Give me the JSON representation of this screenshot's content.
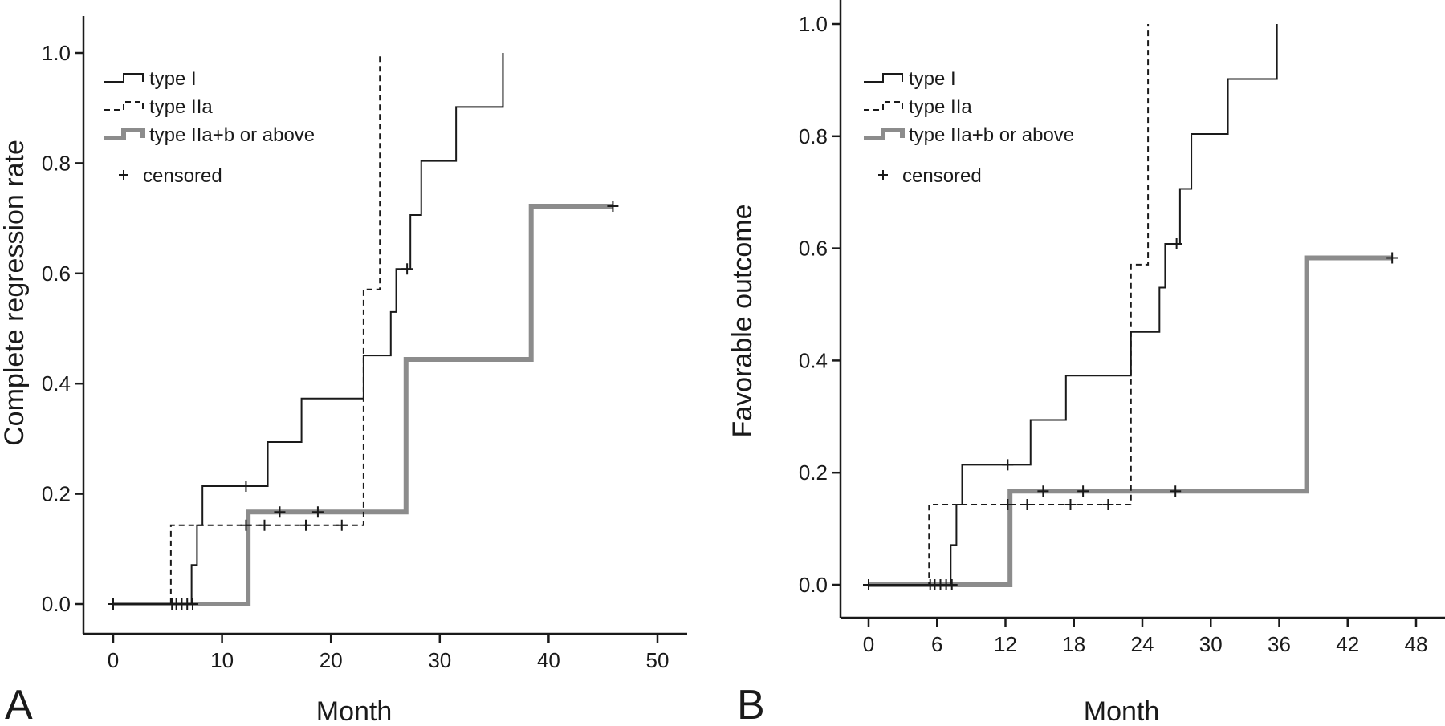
{
  "chart_data": [
    {
      "panel": "A",
      "type": "line",
      "step": true,
      "xlabel": "Month",
      "ylabel": "Complete regression rate",
      "xlim": [
        -3,
        53
      ],
      "ylim": [
        -0.05,
        1.05
      ],
      "xticks": [
        0,
        10,
        20,
        30,
        40,
        50
      ],
      "yticks": [
        0.0,
        0.2,
        0.4,
        0.6,
        0.8,
        1.0
      ],
      "grid": false,
      "legend_position": "top-left",
      "legend": [
        "type I",
        "type IIa",
        "type IIa+b or above",
        "censored"
      ],
      "series": [
        {
          "name": "type I",
          "style": "solid-thin",
          "color": "#1a1a1a",
          "x": [
            7.2,
            7.7,
            8.2,
            14.2,
            17.3,
            23.0,
            25.5,
            26.0,
            27.3,
            28.3,
            31.5,
            35.8
          ],
          "y": [
            0.071,
            0.143,
            0.214,
            0.294,
            0.373,
            0.451,
            0.53,
            0.608,
            0.706,
            0.804,
            0.902,
            1.0
          ],
          "censored": [
            [
              12.2,
              0.214
            ],
            [
              27.0,
              0.608
            ]
          ]
        },
        {
          "name": "type IIa",
          "style": "dashed",
          "color": "#1a1a1a",
          "x": [
            5.3,
            23.0,
            24.5
          ],
          "y": [
            0.143,
            0.571,
            1.0
          ],
          "censored": [
            [
              12.2,
              0.143
            ],
            [
              13.9,
              0.143
            ],
            [
              17.7,
              0.143
            ],
            [
              21.0,
              0.143
            ]
          ]
        },
        {
          "name": "type IIa+b or above",
          "style": "solid-thick",
          "color": "#8c8c8c",
          "x": [
            12.4,
            26.9,
            38.4
          ],
          "y": [
            0.167,
            0.444,
            0.722
          ],
          "censored": [
            [
              15.3,
              0.167
            ],
            [
              18.8,
              0.167
            ],
            [
              45.9,
              0.722
            ]
          ]
        }
      ],
      "censored_at_start": [
        0.0,
        5.4,
        5.8,
        6.3,
        6.8,
        7.3
      ]
    },
    {
      "panel": "B",
      "type": "line",
      "step": true,
      "xlabel": "Month",
      "ylabel": "Favorable outcome",
      "xlim": [
        -2.5,
        49
      ],
      "ylim": [
        -0.05,
        1.05
      ],
      "xticks": [
        0,
        6,
        12,
        18,
        24,
        30,
        36,
        42,
        48
      ],
      "yticks": [
        0.0,
        0.2,
        0.4,
        0.6,
        0.8,
        1.0
      ],
      "grid": false,
      "legend_position": "top-left",
      "legend": [
        "type I",
        "type IIa",
        "type IIa+b or above",
        "censored"
      ],
      "series": [
        {
          "name": "type I",
          "style": "solid-thin",
          "color": "#1a1a1a",
          "x": [
            7.2,
            7.7,
            8.2,
            14.2,
            17.3,
            23.0,
            25.5,
            26.0,
            27.3,
            28.3,
            31.5,
            35.8
          ],
          "y": [
            0.071,
            0.143,
            0.214,
            0.294,
            0.373,
            0.451,
            0.53,
            0.608,
            0.706,
            0.804,
            0.902,
            1.0
          ],
          "censored": [
            [
              12.2,
              0.214
            ],
            [
              27.0,
              0.608
            ]
          ]
        },
        {
          "name": "type IIa",
          "style": "dashed",
          "color": "#1a1a1a",
          "x": [
            5.3,
            23.0,
            24.5
          ],
          "y": [
            0.143,
            0.571,
            1.0
          ],
          "censored": [
            [
              12.2,
              0.143
            ],
            [
              13.9,
              0.143
            ],
            [
              17.7,
              0.143
            ],
            [
              21.0,
              0.143
            ]
          ]
        },
        {
          "name": "type IIa+b or above",
          "style": "solid-thick",
          "color": "#8c8c8c",
          "x": [
            12.4,
            38.4
          ],
          "y": [
            0.167,
            0.583
          ],
          "censored": [
            [
              15.3,
              0.167
            ],
            [
              18.8,
              0.167
            ],
            [
              26.9,
              0.167
            ],
            [
              45.9,
              0.583
            ]
          ]
        }
      ],
      "censored_at_start": [
        0.0,
        5.4,
        5.8,
        6.3,
        6.8,
        7.3
      ]
    }
  ]
}
